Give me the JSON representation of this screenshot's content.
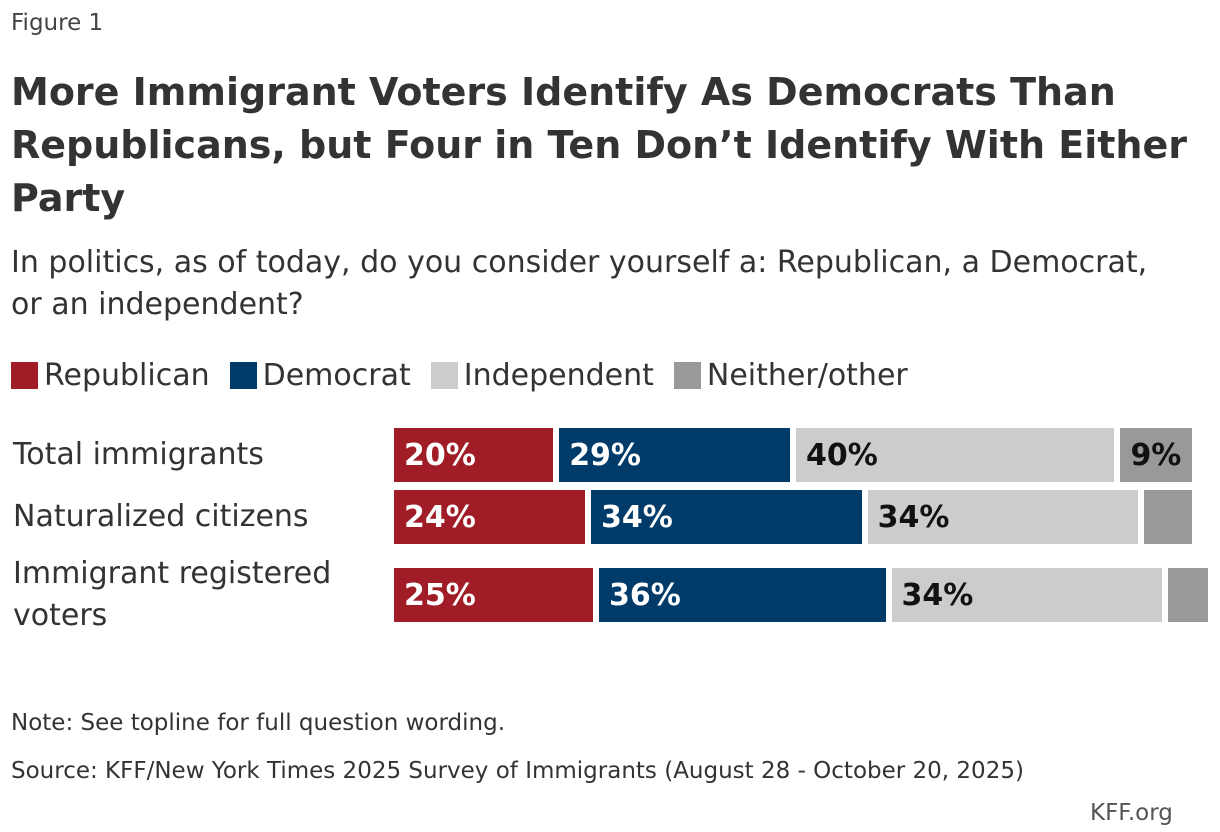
{
  "chart_data": {
    "type": "stacked-bar",
    "figure_label": "Figure 1",
    "title": "More Immigrant Voters Identify As Democrats Than Republicans, but Four in Ten Don’t Identify With Either Party",
    "subtitle": "In politics, as of today, do you consider yourself a: Republican, a Democrat, or an independent?",
    "categories": [
      "Total immigrants",
      "Naturalized citizens",
      "Immigrant registered voters"
    ],
    "xlim": [
      0,
      100
    ],
    "series": [
      {
        "name": "Republican",
        "color": "#a01c26",
        "values": [
          20,
          24,
          25
        ],
        "value_labels": [
          "20%",
          "24%",
          "25%"
        ]
      },
      {
        "name": "Democrat",
        "color": "#003b6a",
        "values": [
          29,
          34,
          36
        ],
        "value_labels": [
          "29%",
          "34%",
          "36%"
        ]
      },
      {
        "name": "Independent",
        "color": "#cccccc",
        "values": [
          40,
          34,
          34
        ],
        "value_labels": [
          "40%",
          "34%",
          "34%"
        ]
      },
      {
        "name": "Neither/other",
        "color": "#999999",
        "values": [
          9,
          6,
          5
        ],
        "value_labels": [
          "9%",
          null,
          null
        ]
      }
    ],
    "note": "Note: See topline for full question wording.",
    "source": "Source: KFF/New York Times 2025 Survey of Immigrants (August 28 - October 20, 2025)",
    "logo": "KFF.org"
  }
}
